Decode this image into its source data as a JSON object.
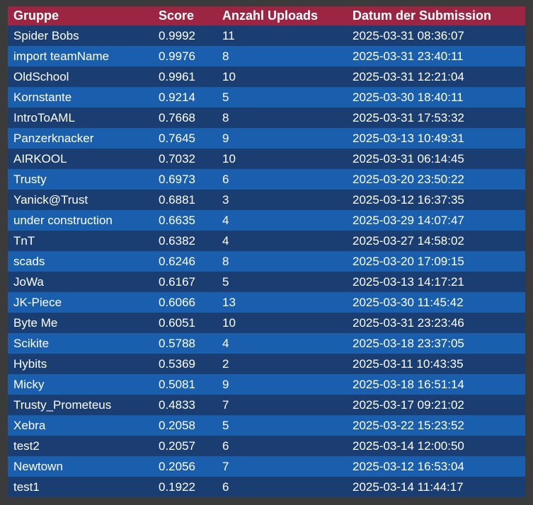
{
  "table": {
    "columns": [
      "Gruppe",
      "Score",
      "Anzahl Uploads",
      "Datum der Submission"
    ],
    "rows": [
      {
        "group": "Spider Bobs",
        "score": "0.9992",
        "uploads": "11",
        "date": "2025-03-31 08:36:07"
      },
      {
        "group": "import teamName",
        "score": "0.9976",
        "uploads": "8",
        "date": "2025-03-31 23:40:11"
      },
      {
        "group": "OldSchool",
        "score": "0.9961",
        "uploads": "10",
        "date": "2025-03-31 12:21:04"
      },
      {
        "group": "Kornstante",
        "score": "0.9214",
        "uploads": "5",
        "date": "2025-03-30 18:40:11"
      },
      {
        "group": "IntroToAML",
        "score": "0.7668",
        "uploads": "8",
        "date": "2025-03-31 17:53:32"
      },
      {
        "group": "Panzerknacker",
        "score": "0.7645",
        "uploads": "9",
        "date": "2025-03-13 10:49:31"
      },
      {
        "group": "AIRKOOL",
        "score": "0.7032",
        "uploads": "10",
        "date": "2025-03-31 06:14:45"
      },
      {
        "group": "Trusty",
        "score": "0.6973",
        "uploads": "6",
        "date": "2025-03-20 23:50:22"
      },
      {
        "group": "Yanick@Trust",
        "score": "0.6881",
        "uploads": "3",
        "date": "2025-03-12 16:37:35"
      },
      {
        "group": "under construction",
        "score": "0.6635",
        "uploads": "4",
        "date": "2025-03-29 14:07:47"
      },
      {
        "group": "TnT",
        "score": "0.6382",
        "uploads": "4",
        "date": "2025-03-27 14:58:02"
      },
      {
        "group": "scads",
        "score": "0.6246",
        "uploads": "8",
        "date": "2025-03-20 17:09:15"
      },
      {
        "group": "JoWa",
        "score": "0.6167",
        "uploads": "5",
        "date": "2025-03-13 14:17:21"
      },
      {
        "group": "JK-Piece",
        "score": "0.6066",
        "uploads": "13",
        "date": "2025-03-30 11:45:42"
      },
      {
        "group": "Byte Me",
        "score": "0.6051",
        "uploads": "10",
        "date": "2025-03-31 23:23:46"
      },
      {
        "group": "Scikite",
        "score": "0.5788",
        "uploads": "4",
        "date": "2025-03-18 23:37:05"
      },
      {
        "group": "Hybits",
        "score": "0.5369",
        "uploads": "2",
        "date": "2025-03-11 10:43:35"
      },
      {
        "group": "Micky",
        "score": "0.5081",
        "uploads": "9",
        "date": "2025-03-18 16:51:14"
      },
      {
        "group": "Trusty_Prometeus",
        "score": "0.4833",
        "uploads": "7",
        "date": "2025-03-17 09:21:02"
      },
      {
        "group": "Xebra",
        "score": "0.2058",
        "uploads": "5",
        "date": "2025-03-22 15:23:52"
      },
      {
        "group": "test2",
        "score": "0.2057",
        "uploads": "6",
        "date": "2025-03-14 12:00:50"
      },
      {
        "group": "Newtown",
        "score": "0.2056",
        "uploads": "7",
        "date": "2025-03-12 16:53:04"
      },
      {
        "group": "test1",
        "score": "0.1922",
        "uploads": "6",
        "date": "2025-03-14 11:44:17"
      }
    ]
  },
  "colors": {
    "header_bg": "#9c2543",
    "row_dark": "#1b3e72",
    "row_light": "#1a5fae",
    "background": "#3b3b3b",
    "text": "#ffffff"
  }
}
